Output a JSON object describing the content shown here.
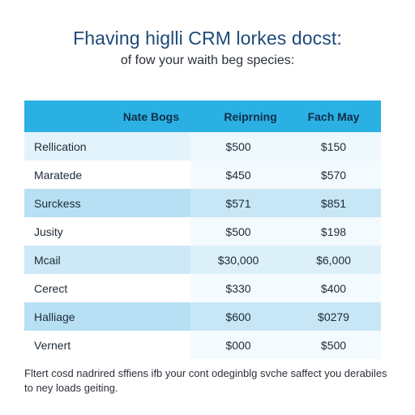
{
  "page": {
    "title": "Fhaving higlli CRM lorkes docst:",
    "subtitle": "of fow your waith beg species:"
  },
  "colors": {
    "header_bg": "#2bb0e3",
    "title_color": "#1d4a78",
    "row_light": "#e3f3fb",
    "row_mid": "#cde9f7",
    "row_dark": "#b7e0f4"
  },
  "table": {
    "headers": [
      "Nate Bogs",
      "Reiprning",
      "Fach May"
    ],
    "rows": [
      {
        "name": "Rellication",
        "col1": "$500",
        "col2": "$150"
      },
      {
        "name": "Maratede",
        "col1": "$450",
        "col2": "$570"
      },
      {
        "name": "Surckess",
        "col1": "$571",
        "col2": "$851"
      },
      {
        "name": "Jusity",
        "col1": "$500",
        "col2": "$198"
      },
      {
        "name": "Mcail",
        "col1": "$30,000",
        "col2": "$6,000"
      },
      {
        "name": "Cerect",
        "col1": "$330",
        "col2": "$400"
      },
      {
        "name": "Halliage",
        "col1": "$600",
        "col2": "$0279"
      },
      {
        "name": "Vernert",
        "col1": "$000",
        "col2": "$500"
      }
    ]
  },
  "footer": {
    "note": "Fltert cosd nadrired sffiens ifb your cont odeginblg svche saffect you derabiles to ney loads geiting."
  }
}
